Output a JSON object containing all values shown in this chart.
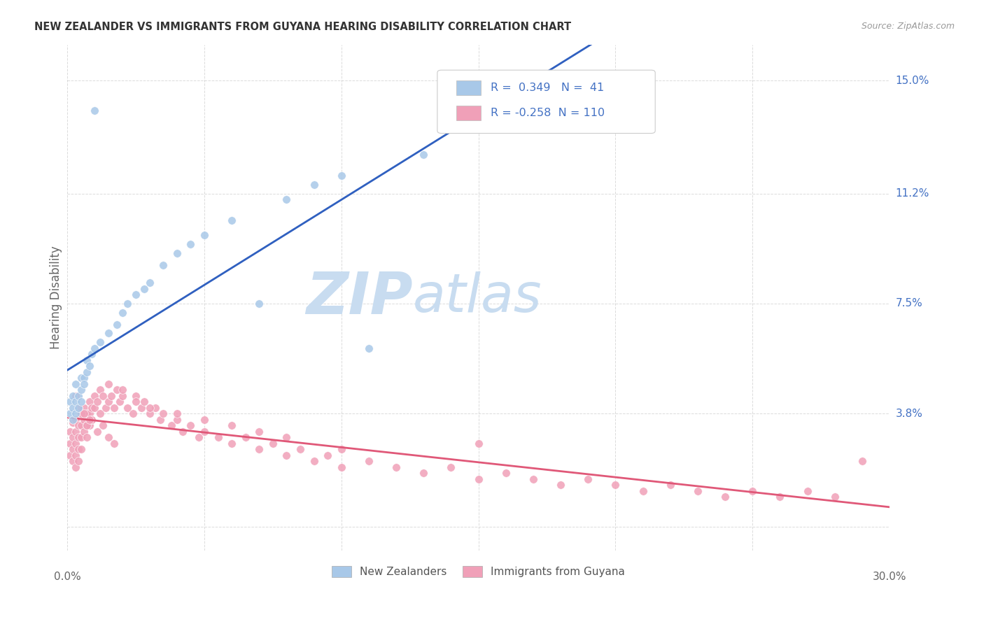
{
  "title": "NEW ZEALANDER VS IMMIGRANTS FROM GUYANA HEARING DISABILITY CORRELATION CHART",
  "source": "Source: ZipAtlas.com",
  "ylabel": "Hearing Disability",
  "ytick_values": [
    0.0,
    0.038,
    0.075,
    0.112,
    0.15
  ],
  "ytick_right_labels": [
    "",
    "3.8%",
    "7.5%",
    "11.2%",
    "15.0%"
  ],
  "xlim": [
    0.0,
    0.3
  ],
  "ylim": [
    -0.008,
    0.162
  ],
  "legend_label1": "New Zealanders",
  "legend_label2": "Immigrants from Guyana",
  "r1": "0.349",
  "n1": "41",
  "r2": "-0.258",
  "n2": "110",
  "color_blue": "#A8C8E8",
  "color_pink": "#F0A0B8",
  "color_blue_line": "#3060C0",
  "color_pink_line": "#E05878",
  "color_blue_dash": "#90B8D8",
  "background_color": "#FFFFFF",
  "grid_color": "#CCCCCC",
  "nz_x": [
    0.001,
    0.001,
    0.002,
    0.002,
    0.002,
    0.003,
    0.003,
    0.003,
    0.004,
    0.004,
    0.005,
    0.005,
    0.005,
    0.006,
    0.006,
    0.007,
    0.007,
    0.008,
    0.009,
    0.01,
    0.012,
    0.015,
    0.018,
    0.02,
    0.022,
    0.025,
    0.028,
    0.03,
    0.035,
    0.04,
    0.045,
    0.05,
    0.06,
    0.07,
    0.08,
    0.09,
    0.1,
    0.11,
    0.13,
    0.15,
    0.01
  ],
  "nz_y": [
    0.038,
    0.042,
    0.036,
    0.04,
    0.044,
    0.038,
    0.042,
    0.048,
    0.04,
    0.044,
    0.046,
    0.05,
    0.042,
    0.05,
    0.048,
    0.052,
    0.056,
    0.054,
    0.058,
    0.06,
    0.062,
    0.065,
    0.068,
    0.072,
    0.075,
    0.078,
    0.08,
    0.082,
    0.088,
    0.092,
    0.095,
    0.098,
    0.103,
    0.075,
    0.11,
    0.115,
    0.118,
    0.06,
    0.125,
    0.135,
    0.14
  ],
  "guyana_x": [
    0.001,
    0.001,
    0.001,
    0.002,
    0.002,
    0.002,
    0.002,
    0.003,
    0.003,
    0.003,
    0.003,
    0.003,
    0.004,
    0.004,
    0.004,
    0.004,
    0.005,
    0.005,
    0.005,
    0.005,
    0.006,
    0.006,
    0.006,
    0.007,
    0.007,
    0.007,
    0.008,
    0.008,
    0.008,
    0.009,
    0.009,
    0.01,
    0.01,
    0.011,
    0.012,
    0.012,
    0.013,
    0.014,
    0.015,
    0.015,
    0.016,
    0.017,
    0.018,
    0.019,
    0.02,
    0.022,
    0.024,
    0.025,
    0.027,
    0.028,
    0.03,
    0.032,
    0.034,
    0.035,
    0.038,
    0.04,
    0.042,
    0.045,
    0.048,
    0.05,
    0.055,
    0.06,
    0.065,
    0.07,
    0.075,
    0.08,
    0.085,
    0.09,
    0.095,
    0.1,
    0.11,
    0.12,
    0.13,
    0.14,
    0.15,
    0.16,
    0.17,
    0.18,
    0.19,
    0.2,
    0.21,
    0.22,
    0.23,
    0.24,
    0.25,
    0.26,
    0.27,
    0.28,
    0.005,
    0.007,
    0.009,
    0.011,
    0.013,
    0.015,
    0.017,
    0.003,
    0.004,
    0.006,
    0.008,
    0.02,
    0.025,
    0.03,
    0.04,
    0.05,
    0.06,
    0.07,
    0.08,
    0.29,
    0.15,
    0.1
  ],
  "guyana_y": [
    0.032,
    0.028,
    0.024,
    0.035,
    0.03,
    0.026,
    0.022,
    0.036,
    0.032,
    0.028,
    0.024,
    0.02,
    0.034,
    0.03,
    0.026,
    0.022,
    0.038,
    0.034,
    0.03,
    0.026,
    0.04,
    0.036,
    0.032,
    0.038,
    0.034,
    0.03,
    0.042,
    0.038,
    0.034,
    0.04,
    0.036,
    0.044,
    0.04,
    0.042,
    0.046,
    0.038,
    0.044,
    0.04,
    0.048,
    0.042,
    0.044,
    0.04,
    0.046,
    0.042,
    0.044,
    0.04,
    0.038,
    0.044,
    0.04,
    0.042,
    0.038,
    0.04,
    0.036,
    0.038,
    0.034,
    0.036,
    0.032,
    0.034,
    0.03,
    0.032,
    0.03,
    0.028,
    0.03,
    0.026,
    0.028,
    0.024,
    0.026,
    0.022,
    0.024,
    0.02,
    0.022,
    0.02,
    0.018,
    0.02,
    0.016,
    0.018,
    0.016,
    0.014,
    0.016,
    0.014,
    0.012,
    0.014,
    0.012,
    0.01,
    0.012,
    0.01,
    0.012,
    0.01,
    0.038,
    0.034,
    0.036,
    0.032,
    0.034,
    0.03,
    0.028,
    0.044,
    0.04,
    0.038,
    0.036,
    0.046,
    0.042,
    0.04,
    0.038,
    0.036,
    0.034,
    0.032,
    0.03,
    0.022,
    0.028,
    0.026
  ]
}
